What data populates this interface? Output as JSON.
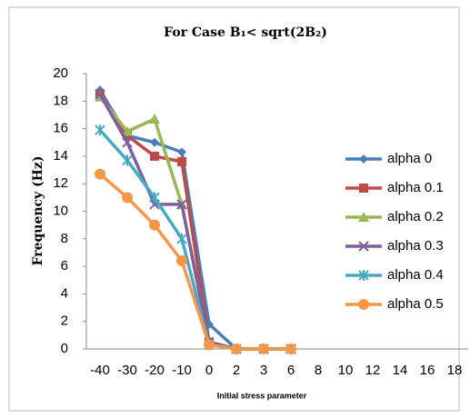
{
  "chart_data": {
    "type": "line",
    "title": "For Case B₁< sqrt(2B₂)",
    "x_label": "Initial stress parameter",
    "y_label": "Frequency (Hz)",
    "categories": [
      "-40",
      "-30",
      "-20",
      "-10",
      "0",
      "2",
      "3",
      "6",
      "8",
      "10",
      "12",
      "14",
      "16",
      "18"
    ],
    "ylim": [
      0,
      20
    ],
    "yticks": [
      0,
      2,
      4,
      6,
      8,
      10,
      12,
      14,
      16,
      18,
      20
    ],
    "grid": false,
    "legend": "right",
    "series": [
      {
        "name": "alpha 0",
        "color": "#4a7ebb",
        "marker": "diamond",
        "values": [
          18.8,
          15.5,
          15,
          14.3,
          1.8,
          0,
          0,
          0,
          null,
          null,
          null,
          null,
          null,
          null
        ]
      },
      {
        "name": "alpha 0.1",
        "color": "#be4b48",
        "marker": "square",
        "values": [
          18.5,
          15.5,
          14,
          13.6,
          0.5,
          0,
          0,
          0,
          null,
          null,
          null,
          null,
          null,
          null
        ]
      },
      {
        "name": "alpha 0.2",
        "color": "#98b954",
        "marker": "triangle",
        "values": [
          18.3,
          15.8,
          16.7,
          10.5,
          0.5,
          0,
          0,
          0,
          null,
          null,
          null,
          null,
          null,
          null
        ]
      },
      {
        "name": "alpha 0.3",
        "color": "#7d60a0",
        "marker": "cross",
        "values": [
          18.5,
          15,
          10.5,
          10.5,
          0.5,
          0,
          0,
          0,
          null,
          null,
          null,
          null,
          null,
          null
        ]
      },
      {
        "name": "alpha 0.4",
        "color": "#46aac5",
        "marker": "star",
        "values": [
          15.9,
          13.7,
          11,
          8,
          0.3,
          0,
          0,
          0,
          null,
          null,
          null,
          null,
          null,
          null
        ]
      },
      {
        "name": "alpha 0.5",
        "color": "#f79646",
        "marker": "circle",
        "values": [
          12.7,
          11,
          9,
          6.4,
          0.3,
          0,
          0,
          0,
          null,
          null,
          null,
          null,
          null,
          null
        ]
      }
    ]
  }
}
